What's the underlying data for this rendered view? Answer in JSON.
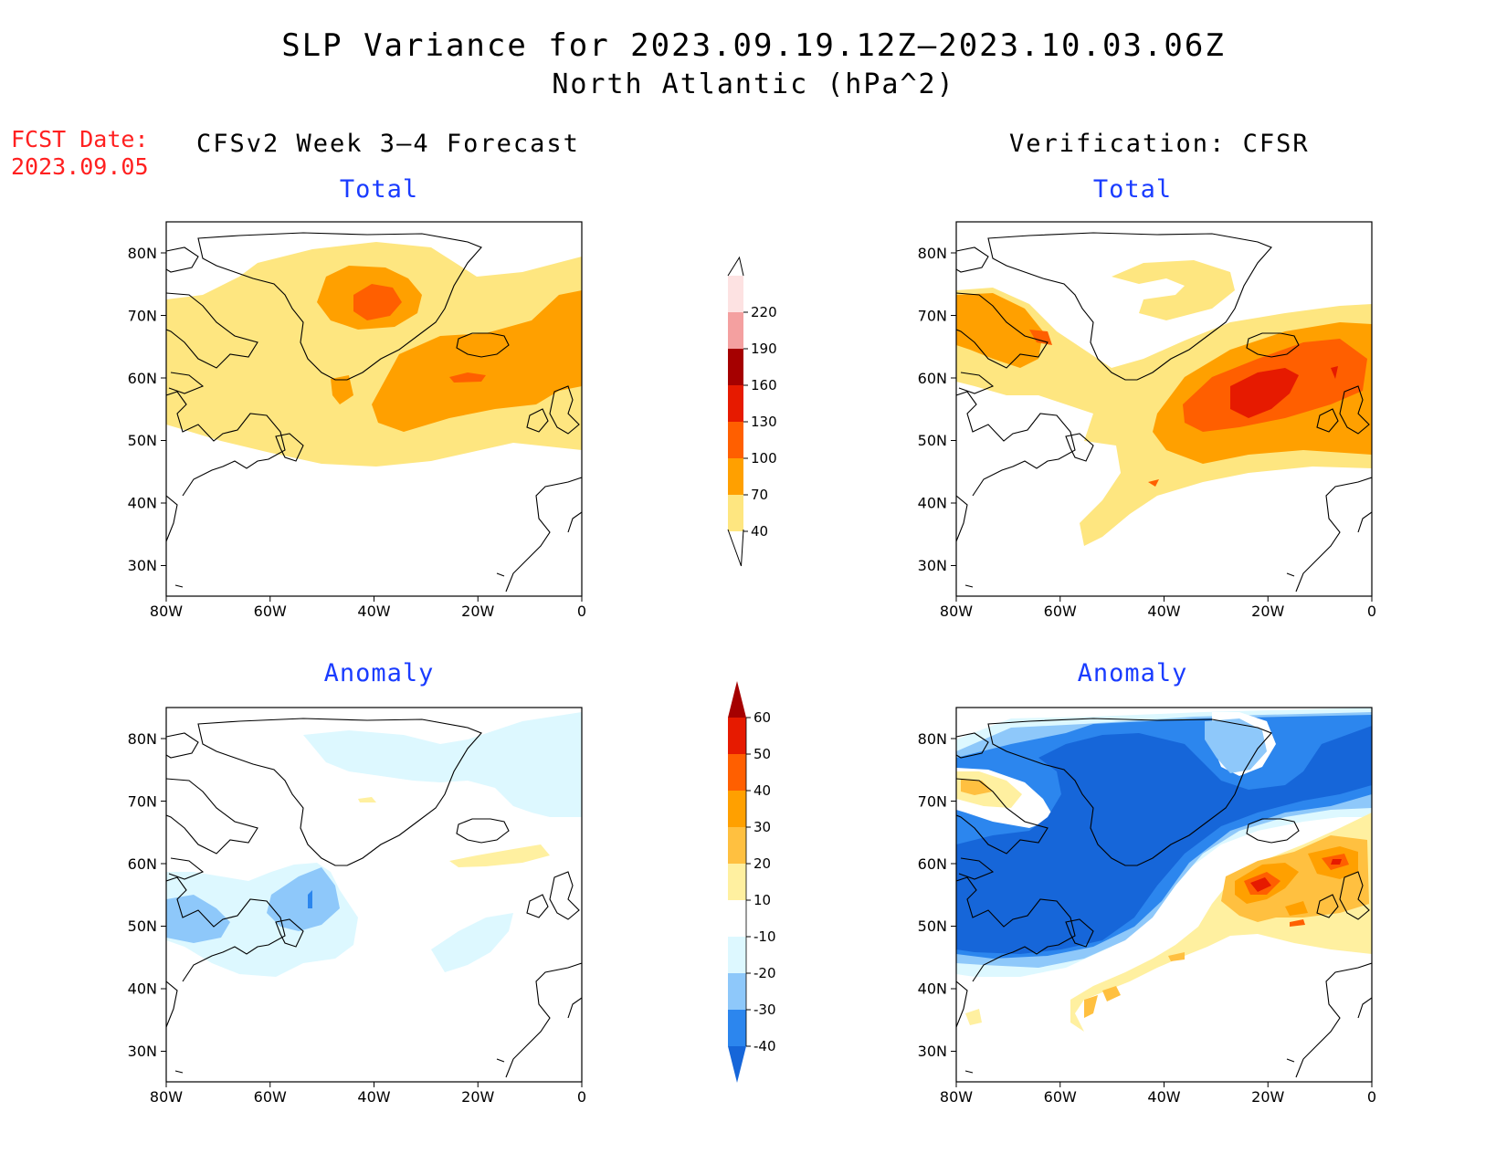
{
  "figure": {
    "title": "SLP Variance for 2023.09.19.12Z–2023.10.03.06Z",
    "subtitle": "North Atlantic (hPa^2)",
    "fcst_label": "FCST Date:",
    "fcst_date": "2023.09.05",
    "left_column_title": "CFSv2 Week 3–4 Forecast",
    "right_column_title": "Verification: CFSR"
  },
  "map": {
    "lon_ticks": [
      "80W",
      "60W",
      "40W",
      "20W",
      "0"
    ],
    "lat_ticks": [
      "80N",
      "70N",
      "60N",
      "50N",
      "40N",
      "30N"
    ],
    "lon_range": [
      -80,
      0
    ],
    "lat_range": [
      25,
      85
    ],
    "coastline_color": "#000000"
  },
  "colorbars": {
    "total": {
      "levels": [
        "40",
        "70",
        "100",
        "130",
        "160",
        "190",
        "220"
      ],
      "colors": [
        "#fee680",
        "#ffa000",
        "#ff5f00",
        "#e61a00",
        "#a50000",
        "#f4a0a0",
        "#fde2e2"
      ]
    },
    "anomaly": {
      "levels": [
        "-40",
        "-30",
        "-20",
        "-10",
        "10",
        "20",
        "30",
        "40",
        "50",
        "60"
      ],
      "colors": [
        "#1666d9",
        "#2c86ee",
        "#8ec8fa",
        "#ddf8ff",
        "#ffffff",
        "#fff0a0",
        "#ffc040",
        "#ffa000",
        "#ff5f00",
        "#e61a00",
        "#a50000"
      ]
    }
  },
  "panels": [
    {
      "id": "fcst-total",
      "title": "Total"
    },
    {
      "id": "verif-total",
      "title": "Total"
    },
    {
      "id": "fcst-anomaly",
      "title": "Anomaly"
    },
    {
      "id": "verif-anomaly",
      "title": "Anomaly"
    }
  ]
}
